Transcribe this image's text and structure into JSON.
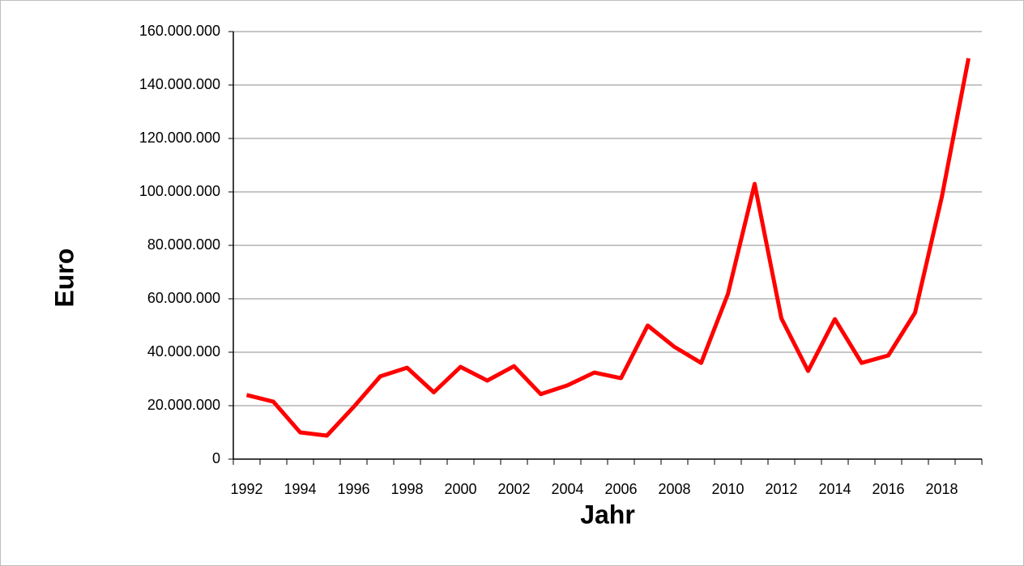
{
  "chart_data": {
    "type": "line",
    "x_label": "Jahr",
    "y_label": "Euro",
    "categories": [
      "1992",
      null,
      "1994",
      null,
      "1996",
      null,
      "1998",
      null,
      "2000",
      null,
      "2002",
      null,
      "2004",
      null,
      "2006",
      null,
      "2008",
      null,
      "2010",
      null,
      "2012",
      null,
      "2014",
      null,
      "2016",
      null,
      "2018",
      null
    ],
    "values": [
      24000000,
      21500000,
      10000000,
      8800000,
      19500000,
      31000000,
      34200000,
      25000000,
      34500000,
      29400000,
      34800000,
      24300000,
      27600000,
      32400000,
      30300000,
      50000000,
      42000000,
      36000000,
      61800000,
      103000000,
      52700000,
      33000000,
      52400000,
      36000000,
      38800000,
      54800000,
      98000000,
      150000000
    ],
    "color": "#ff0000",
    "ylim": [
      0,
      160000000
    ],
    "yticks": [
      0,
      {
        "value": 20000000,
        "label": "20.000.000"
      },
      {
        "value": 40000000,
        "label": "40.000.000"
      },
      {
        "value": 60000000,
        "label": "60.000.000"
      },
      {
        "value": 80000000,
        "label": "80.000.000"
      },
      {
        "value": 100000000,
        "label": "100.000.000"
      },
      {
        "value": 120000000,
        "label": "120.000.000"
      },
      {
        "value": 140000000,
        "label": "140.000.000"
      },
      {
        "value": 160000000,
        "label": "160.000.000"
      }
    ],
    "grid": true
  }
}
